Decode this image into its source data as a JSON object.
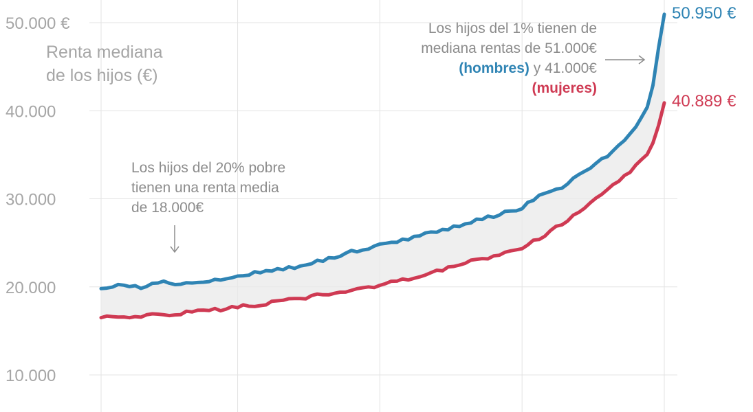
{
  "chart_data": {
    "type": "line",
    "ylabel": [
      "Renta mediana",
      "de los hijos (€)"
    ],
    "ylim": [
      10000,
      50000
    ],
    "xlim": [
      1,
      100
    ],
    "yticks": [
      {
        "value": 10000,
        "label": "10.000"
      },
      {
        "value": 20000,
        "label": "20.000"
      },
      {
        "value": 30000,
        "label": "30.000"
      },
      {
        "value": 40000,
        "label": "40.000"
      },
      {
        "value": 50000,
        "label": "50.000 €"
      }
    ],
    "xgrid": [
      1,
      25,
      50,
      75,
      100
    ],
    "series": [
      {
        "name": "hombres",
        "color": "#2f84b4",
        "end_label": "50.950 €",
        "keypoints": [
          [
            1,
            19800
          ],
          [
            5,
            20200
          ],
          [
            8,
            20000
          ],
          [
            12,
            20500
          ],
          [
            15,
            20400
          ],
          [
            20,
            20700
          ],
          [
            25,
            21300
          ],
          [
            30,
            21700
          ],
          [
            35,
            22300
          ],
          [
            40,
            23000
          ],
          [
            45,
            24000
          ],
          [
            50,
            24800
          ],
          [
            55,
            25500
          ],
          [
            60,
            26300
          ],
          [
            65,
            27200
          ],
          [
            70,
            28000
          ],
          [
            75,
            29000
          ],
          [
            78,
            30200
          ],
          [
            81,
            31000
          ],
          [
            84,
            32200
          ],
          [
            87,
            33500
          ],
          [
            90,
            34800
          ],
          [
            93,
            36500
          ],
          [
            95,
            38200
          ],
          [
            97,
            40500
          ],
          [
            98,
            42800
          ],
          [
            99,
            47000
          ],
          [
            100,
            50950
          ]
        ]
      },
      {
        "name": "mujeres",
        "color": "#cf3a53",
        "end_label": "40.889 €",
        "keypoints": [
          [
            1,
            16500
          ],
          [
            5,
            16600
          ],
          [
            10,
            16800
          ],
          [
            15,
            17000
          ],
          [
            20,
            17300
          ],
          [
            25,
            17700
          ],
          [
            30,
            18100
          ],
          [
            35,
            18600
          ],
          [
            40,
            19100
          ],
          [
            45,
            19700
          ],
          [
            50,
            20200
          ],
          [
            55,
            20900
          ],
          [
            60,
            21800
          ],
          [
            65,
            22700
          ],
          [
            70,
            23400
          ],
          [
            75,
            24500
          ],
          [
            78,
            25500
          ],
          [
            81,
            26700
          ],
          [
            84,
            28000
          ],
          [
            87,
            29500
          ],
          [
            90,
            31000
          ],
          [
            93,
            32500
          ],
          [
            95,
            33700
          ],
          [
            97,
            35200
          ],
          [
            98,
            36500
          ],
          [
            99,
            38500
          ],
          [
            100,
            40889
          ]
        ]
      }
    ],
    "annotations": {
      "top": {
        "lines": [
          "Los hijos del 1% tienen de",
          "mediana rentas de 51.000€"
        ],
        "line3_bold": "(hombres)",
        "line3_rest": " y 41.000€",
        "line4_bold": "(mujeres)"
      },
      "bottom": {
        "lines": [
          "Los hijos del 20% pobre",
          "tienen una renta media",
          "de 18.000€"
        ]
      }
    }
  }
}
